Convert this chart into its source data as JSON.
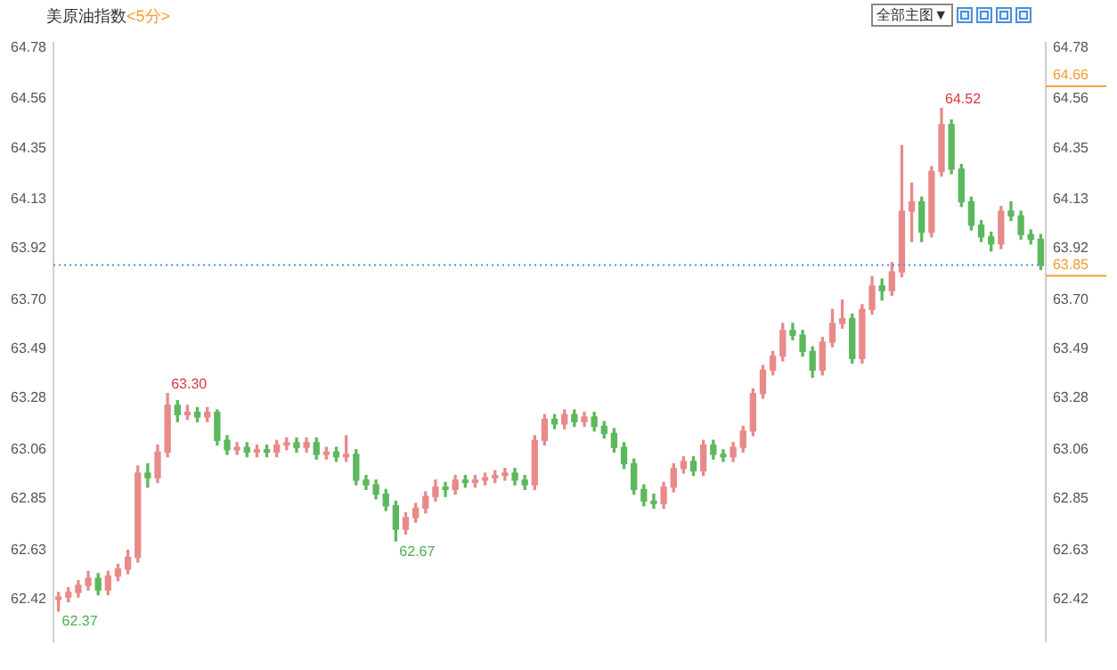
{
  "chart_data": {
    "type": "candlestick",
    "title": "美原油指数",
    "subtitle": "<5分>",
    "categories": [
      null,
      null,
      null,
      null,
      null,
      null,
      null,
      null,
      null,
      null,
      null,
      null,
      null,
      null,
      null,
      null,
      null,
      null,
      null,
      null,
      null,
      null,
      null,
      null,
      null,
      null,
      null,
      null,
      null,
      null,
      null,
      null,
      null,
      null,
      null,
      null,
      null,
      null,
      null,
      null,
      null,
      null,
      null,
      null,
      null,
      null,
      null,
      null,
      null,
      null,
      null,
      null,
      null,
      null,
      null,
      null,
      null,
      null,
      null,
      null,
      null,
      null,
      null,
      null,
      null,
      null,
      null,
      null,
      null,
      null,
      null,
      null,
      null,
      null,
      null,
      null,
      null,
      null,
      null,
      null,
      null,
      null,
      null,
      null,
      null,
      null,
      null,
      null,
      null,
      null,
      null,
      null,
      null,
      null,
      null,
      null,
      null,
      null,
      null,
      null
    ],
    "ohlc": [
      [
        62.42,
        62.45,
        62.37,
        62.43
      ],
      [
        62.43,
        62.47,
        62.41,
        62.45
      ],
      [
        62.45,
        62.5,
        62.43,
        62.48
      ],
      [
        62.48,
        62.54,
        62.46,
        62.51
      ],
      [
        62.51,
        62.53,
        62.44,
        62.46
      ],
      [
        62.46,
        62.54,
        62.44,
        62.52
      ],
      [
        62.52,
        62.57,
        62.5,
        62.55
      ],
      [
        62.55,
        62.63,
        62.53,
        62.6
      ],
      [
        62.6,
        62.99,
        62.58,
        62.96
      ],
      [
        62.96,
        63.0,
        62.9,
        62.94
      ],
      [
        62.94,
        63.08,
        62.92,
        63.05
      ],
      [
        63.05,
        63.3,
        63.03,
        63.25
      ],
      [
        63.25,
        63.27,
        63.18,
        63.21
      ],
      [
        63.21,
        63.25,
        63.19,
        63.22
      ],
      [
        63.22,
        63.24,
        63.18,
        63.2
      ],
      [
        63.2,
        63.24,
        63.18,
        63.22
      ],
      [
        63.22,
        63.23,
        63.08,
        63.1
      ],
      [
        63.1,
        63.12,
        63.04,
        63.06
      ],
      [
        63.06,
        63.09,
        63.04,
        63.07
      ],
      [
        63.07,
        63.09,
        63.03,
        63.05
      ],
      [
        63.05,
        63.08,
        63.03,
        63.06
      ],
      [
        63.06,
        63.08,
        63.03,
        63.05
      ],
      [
        63.05,
        63.1,
        63.03,
        63.08
      ],
      [
        63.08,
        63.11,
        63.06,
        63.09
      ],
      [
        63.09,
        63.11,
        63.05,
        63.07
      ],
      [
        63.07,
        63.11,
        63.05,
        63.09
      ],
      [
        63.09,
        63.11,
        63.02,
        63.04
      ],
      [
        63.04,
        63.07,
        63.02,
        63.05
      ],
      [
        63.05,
        63.07,
        63.01,
        63.03
      ],
      [
        63.03,
        63.12,
        63.01,
        63.04
      ],
      [
        63.04,
        63.06,
        62.91,
        62.93
      ],
      [
        62.93,
        62.95,
        62.89,
        62.91
      ],
      [
        62.91,
        62.93,
        62.85,
        62.87
      ],
      [
        62.87,
        62.89,
        62.8,
        62.82
      ],
      [
        62.82,
        62.84,
        62.67,
        62.72
      ],
      [
        62.72,
        62.79,
        62.7,
        62.77
      ],
      [
        62.77,
        62.83,
        62.75,
        62.81
      ],
      [
        62.81,
        62.88,
        62.79,
        62.86
      ],
      [
        62.86,
        62.93,
        62.84,
        62.9
      ],
      [
        62.9,
        62.92,
        62.86,
        62.89
      ],
      [
        62.89,
        62.95,
        62.87,
        62.93
      ],
      [
        62.93,
        62.95,
        62.9,
        62.92
      ],
      [
        62.92,
        62.95,
        62.9,
        62.93
      ],
      [
        62.93,
        62.96,
        62.91,
        62.94
      ],
      [
        62.94,
        62.97,
        62.92,
        62.95
      ],
      [
        62.95,
        62.98,
        62.93,
        62.96
      ],
      [
        62.96,
        62.98,
        62.91,
        62.93
      ],
      [
        62.93,
        62.95,
        62.89,
        62.91
      ],
      [
        62.91,
        63.12,
        62.89,
        63.1
      ],
      [
        63.1,
        63.21,
        63.08,
        63.19
      ],
      [
        63.19,
        63.21,
        63.15,
        63.17
      ],
      [
        63.17,
        63.23,
        63.15,
        63.21
      ],
      [
        63.21,
        63.23,
        63.16,
        63.18
      ],
      [
        63.18,
        63.22,
        63.16,
        63.2
      ],
      [
        63.2,
        63.22,
        63.14,
        63.16
      ],
      [
        63.16,
        63.18,
        63.11,
        63.13
      ],
      [
        63.13,
        63.15,
        63.05,
        63.07
      ],
      [
        63.07,
        63.09,
        62.98,
        63.0
      ],
      [
        63.0,
        63.02,
        62.87,
        62.89
      ],
      [
        62.89,
        62.91,
        62.82,
        62.84
      ],
      [
        62.84,
        62.87,
        62.81,
        62.83
      ],
      [
        62.83,
        62.92,
        62.81,
        62.9
      ],
      [
        62.9,
        63.0,
        62.88,
        62.98
      ],
      [
        62.98,
        63.03,
        62.96,
        63.01
      ],
      [
        63.01,
        63.03,
        62.95,
        62.97
      ],
      [
        62.97,
        63.1,
        62.95,
        63.08
      ],
      [
        63.08,
        63.1,
        63.02,
        63.04
      ],
      [
        63.04,
        63.06,
        63.01,
        63.03
      ],
      [
        63.03,
        63.09,
        63.01,
        63.07
      ],
      [
        63.07,
        63.16,
        63.05,
        63.14
      ],
      [
        63.14,
        63.32,
        63.12,
        63.3
      ],
      [
        63.3,
        63.42,
        63.28,
        63.4
      ],
      [
        63.4,
        63.48,
        63.38,
        63.46
      ],
      [
        63.46,
        63.6,
        63.44,
        63.57
      ],
      [
        63.57,
        63.6,
        63.53,
        63.55
      ],
      [
        63.55,
        63.57,
        63.46,
        63.48
      ],
      [
        63.48,
        63.5,
        63.37,
        63.4
      ],
      [
        63.4,
        63.54,
        63.38,
        63.52
      ],
      [
        63.52,
        63.66,
        63.5,
        63.6
      ],
      [
        63.6,
        63.7,
        63.58,
        63.62
      ],
      [
        63.62,
        63.64,
        63.43,
        63.45
      ],
      [
        63.45,
        63.68,
        63.43,
        63.66
      ],
      [
        63.66,
        63.8,
        63.64,
        63.76
      ],
      [
        63.76,
        63.79,
        63.7,
        63.74
      ],
      [
        63.74,
        63.86,
        63.72,
        63.82
      ],
      [
        63.82,
        64.36,
        63.8,
        64.08
      ],
      [
        64.08,
        64.2,
        63.95,
        64.12
      ],
      [
        64.12,
        64.14,
        63.95,
        63.99
      ],
      [
        63.99,
        64.27,
        63.97,
        64.25
      ],
      [
        64.25,
        64.52,
        64.23,
        64.45
      ],
      [
        64.45,
        64.47,
        64.24,
        64.26
      ],
      [
        64.26,
        64.28,
        64.1,
        64.12
      ],
      [
        64.12,
        64.14,
        64.0,
        64.02
      ],
      [
        64.02,
        64.04,
        63.95,
        63.97
      ],
      [
        63.97,
        63.99,
        63.91,
        63.94
      ],
      [
        63.94,
        64.1,
        63.92,
        64.08
      ],
      [
        64.08,
        64.12,
        64.04,
        64.06
      ],
      [
        64.06,
        64.08,
        63.96,
        63.98
      ],
      [
        63.98,
        64.0,
        63.94,
        63.96
      ],
      [
        63.96,
        63.98,
        63.83,
        63.85
      ]
    ],
    "colors": [
      "#e88a8a",
      "#e88a8a",
      "#e88a8a",
      "#e88a8a",
      "#5cb85c",
      "#e88a8a",
      "#e88a8a",
      "#e88a8a",
      "#e88a8a",
      "#5cb85c",
      "#e88a8a",
      "#e88a8a",
      "#5cb85c",
      "#e88a8a",
      "#5cb85c",
      "#e88a8a",
      "#5cb85c",
      "#5cb85c",
      "#e88a8a",
      "#5cb85c",
      "#e88a8a",
      "#5cb85c",
      "#e88a8a",
      "#e88a8a",
      "#5cb85c",
      "#e88a8a",
      "#5cb85c",
      "#e88a8a",
      "#5cb85c",
      "#e88a8a",
      "#5cb85c",
      "#5cb85c",
      "#5cb85c",
      "#5cb85c",
      "#5cb85c",
      "#e88a8a",
      "#e88a8a",
      "#e88a8a",
      "#e88a8a",
      "#5cb85c",
      "#e88a8a",
      "#5cb85c",
      "#e88a8a",
      "#e88a8a",
      "#e88a8a",
      "#e88a8a",
      "#5cb85c",
      "#5cb85c",
      "#e88a8a",
      "#e88a8a",
      "#5cb85c",
      "#e88a8a",
      "#5cb85c",
      "#e88a8a",
      "#5cb85c",
      "#5cb85c",
      "#5cb85c",
      "#5cb85c",
      "#5cb85c",
      "#5cb85c",
      "#5cb85c",
      "#e88a8a",
      "#e88a8a",
      "#e88a8a",
      "#5cb85c",
      "#e88a8a",
      "#5cb85c",
      "#5cb85c",
      "#e88a8a",
      "#e88a8a",
      "#e88a8a",
      "#e88a8a",
      "#e88a8a",
      "#e88a8a",
      "#5cb85c",
      "#5cb85c",
      "#5cb85c",
      "#e88a8a",
      "#e88a8a",
      "#e88a8a",
      "#5cb85c",
      "#e88a8a",
      "#e88a8a",
      "#5cb85c",
      "#e88a8a",
      "#e88a8a",
      "#e88a8a",
      "#5cb85c",
      "#e88a8a",
      "#e88a8a",
      "#5cb85c",
      "#5cb85c",
      "#5cb85c",
      "#5cb85c",
      "#5cb85c",
      "#e88a8a",
      "#5cb85c",
      "#5cb85c",
      "#5cb85c",
      "#5cb85c"
    ],
    "ylim": [
      62.24,
      64.8
    ],
    "yticks": [
      62.42,
      62.63,
      62.85,
      63.06,
      63.28,
      63.49,
      {
        "value": 63.7,
        "label": "63.70"
      },
      63.92,
      64.13,
      64.35,
      64.56,
      64.78
    ],
    "y2lim": [
      62.24,
      64.8
    ],
    "y2ticks": [
      62.42,
      62.63,
      62.85,
      63.06,
      63.28,
      63.49,
      {
        "value": 63.7,
        "label": "63.70"
      },
      63.92,
      64.13,
      64.35,
      64.56,
      64.78
    ],
    "ref_lines": [
      {
        "axis": "y2",
        "value": 63.85,
        "label": "63.85",
        "color": "#4a90d9",
        "line_style": "dotted"
      }
    ],
    "annotations": [
      "全部主图▼",
      "63.30",
      "64.52",
      "62.67",
      "62.37",
      "64.66"
    ],
    "grid": false,
    "legend": false
  }
}
